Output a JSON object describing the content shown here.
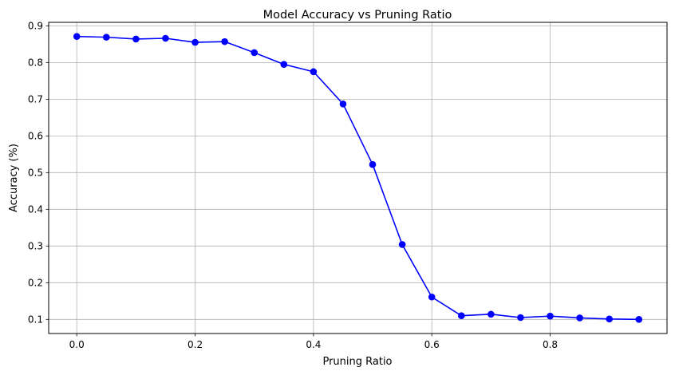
{
  "chart_data": {
    "type": "line",
    "title": "Model Accuracy vs Pruning Ratio",
    "xlabel": "Pruning Ratio",
    "ylabel": "Accuracy (%)",
    "xlim": [
      -0.0475,
      0.9975
    ],
    "ylim": [
      0.0615,
      0.9095
    ],
    "xticks": [
      0.0,
      0.2,
      0.4,
      0.6,
      0.8
    ],
    "xtick_labels": [
      "0.0",
      "0.2",
      "0.4",
      "0.6",
      "0.8"
    ],
    "yticks": [
      0.1,
      0.2,
      0.3,
      0.4,
      0.5,
      0.6,
      0.7,
      0.8,
      0.9
    ],
    "ytick_labels": [
      "0.1",
      "0.2",
      "0.3",
      "0.4",
      "0.5",
      "0.6",
      "0.7",
      "0.8",
      "0.9"
    ],
    "grid": true,
    "legend": "none",
    "color": "#0000ff",
    "x": [
      0.0,
      0.05,
      0.1,
      0.15,
      0.2,
      0.25,
      0.3,
      0.35,
      0.4,
      0.45,
      0.5,
      0.55,
      0.6,
      0.65,
      0.7,
      0.75,
      0.8,
      0.85,
      0.9,
      0.95
    ],
    "series": [
      {
        "values": [
          0.871,
          0.869,
          0.864,
          0.866,
          0.855,
          0.857,
          0.827,
          0.795,
          0.775,
          0.687,
          0.522,
          0.304,
          0.161,
          0.11,
          0.114,
          0.105,
          0.109,
          0.104,
          0.101,
          0.1
        ]
      }
    ]
  }
}
